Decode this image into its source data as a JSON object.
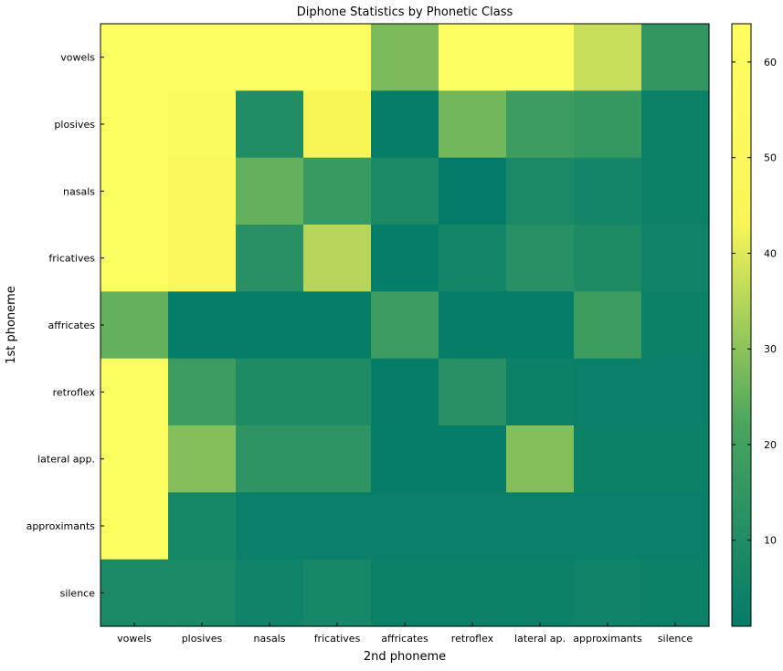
{
  "chart_data": {
    "type": "heatmap",
    "title": "Diphone Statistics by Phonetic Class",
    "xlabel": "2nd phoneme",
    "ylabel": "1st phoneme",
    "x_categories": [
      "vowels",
      "plosives",
      "nasals",
      "fricatives",
      "affricates",
      "retroflex",
      "lateral ap.",
      "approximants",
      "silence"
    ],
    "y_categories": [
      "vowels",
      "plosives",
      "nasals",
      "fricatives",
      "affricates",
      "retroflex",
      "lateral app.",
      "approximants",
      "silence"
    ],
    "values": [
      [
        64,
        64,
        64,
        64,
        28,
        64,
        64,
        37,
        15
      ],
      [
        64,
        57,
        10,
        43,
        2,
        27,
        18,
        16,
        4
      ],
      [
        64,
        47,
        25,
        17,
        8,
        1,
        8,
        6,
        4
      ],
      [
        64,
        47,
        12,
        35,
        2,
        6,
        12,
        9,
        5
      ],
      [
        25,
        2,
        2,
        2,
        18,
        2,
        2,
        18,
        4
      ],
      [
        64,
        18,
        9,
        9,
        2,
        12,
        4,
        3,
        3
      ],
      [
        64,
        29,
        14,
        14,
        2,
        2,
        29,
        4,
        4
      ],
      [
        64,
        7,
        3,
        3,
        3,
        3,
        3,
        3,
        3
      ],
      [
        8,
        8,
        5,
        7,
        4,
        4,
        4,
        5,
        4
      ]
    ],
    "colorbar": {
      "min": 1,
      "max": 64,
      "ticks": [
        10,
        20,
        30,
        40,
        50,
        60
      ],
      "colors": [
        "#037b6a",
        "#4aa45e",
        "#f8f557",
        "#fefe60"
      ]
    },
    "grid": false,
    "legend": "colorbar-right"
  }
}
